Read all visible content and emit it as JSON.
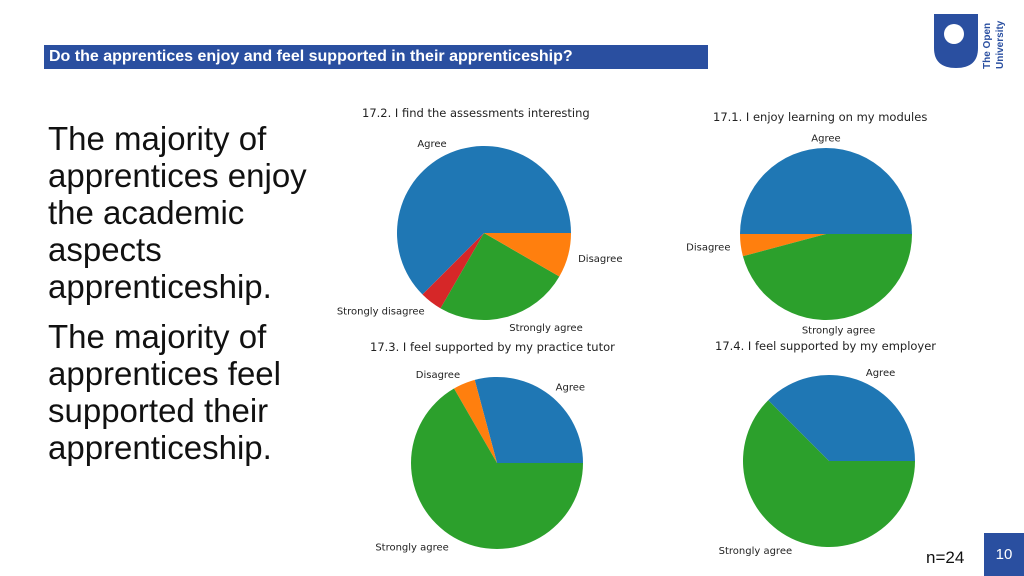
{
  "slide": {
    "title": "Do the apprentices enjoy and feel supported in their apprenticeship?",
    "paragraph_1": "The majority of apprentices enjoy the academic aspects apprenticeship.",
    "paragraph_2": "The majority of apprentices feel supported their apprenticeship.",
    "sample_size": "n=24",
    "page_number": "10"
  },
  "logo": {
    "line_1": "The Open",
    "line_2": "University",
    "color": "#2a4fa0"
  },
  "colors": {
    "Agree": "#1f77b4",
    "Disagree": "#ff7f0e",
    "Strongly agree": "#2ca02c",
    "Strongly disagree": "#d62728"
  },
  "chart_data": [
    {
      "type": "pie",
      "title": "17.2. I find the assessments interesting",
      "categories": [
        "Agree",
        "Strongly disagree",
        "Strongly agree",
        "Disagree"
      ],
      "values": [
        15,
        1,
        6,
        2
      ]
    },
    {
      "type": "pie",
      "title": "17.1. I enjoy learning on my modules",
      "categories": [
        "Agree",
        "Disagree",
        "Strongly agree"
      ],
      "values": [
        12,
        1,
        11
      ]
    },
    {
      "type": "pie",
      "title": "17.3. I feel supported by my practice tutor",
      "categories": [
        "Agree",
        "Disagree",
        "Strongly agree"
      ],
      "values": [
        7,
        1,
        16
      ]
    },
    {
      "type": "pie",
      "title": "17.4. I feel supported by my employer",
      "categories": [
        "Agree",
        "Strongly agree"
      ],
      "values": [
        9,
        15
      ]
    }
  ]
}
